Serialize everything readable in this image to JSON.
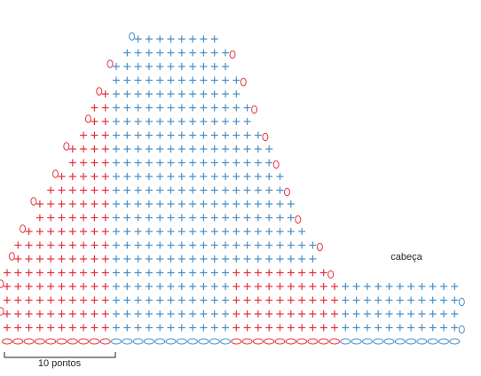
{
  "labels": {
    "head": "cabeça",
    "scale": "10 pontos"
  }
}
